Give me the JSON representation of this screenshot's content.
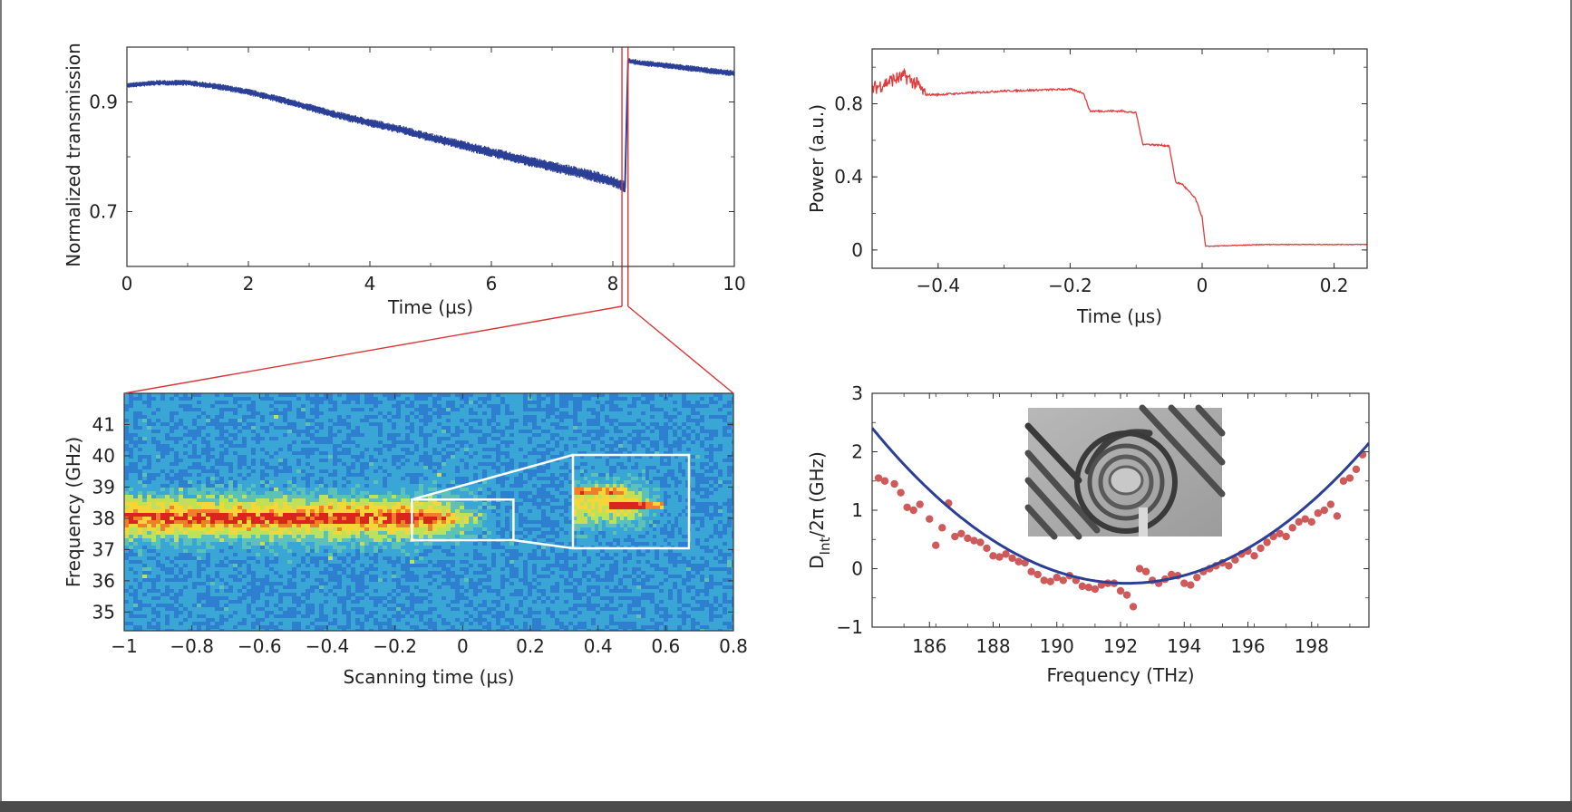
{
  "chart_data": [
    {
      "id": "transmission",
      "type": "line",
      "title": "",
      "xlabel": "Time (µs)",
      "ylabel": "Normalized transmission",
      "xlim": [
        0,
        10
      ],
      "ylim": [
        0.6,
        1.0
      ],
      "xticks": [
        "0",
        "2",
        "4",
        "6",
        "8",
        "10"
      ],
      "xtick_values": [
        0,
        2,
        4,
        6,
        8,
        10
      ],
      "yticks": [
        "0.7",
        "0.9"
      ],
      "ytick_values": [
        0.7,
        0.9
      ],
      "series": [
        {
          "name": "transmission",
          "color": "#2b3f97",
          "x": [
            0,
            0.5,
            1.0,
            1.5,
            2.0,
            2.5,
            3.0,
            3.5,
            4.0,
            4.5,
            5.0,
            5.5,
            6.0,
            6.5,
            7.0,
            7.5,
            8.0,
            8.2,
            8.25,
            8.4,
            9.0,
            9.5,
            10.0
          ],
          "y": [
            0.93,
            0.935,
            0.935,
            0.928,
            0.918,
            0.905,
            0.89,
            0.875,
            0.862,
            0.85,
            0.835,
            0.822,
            0.808,
            0.795,
            0.782,
            0.77,
            0.755,
            0.745,
            0.975,
            0.972,
            0.965,
            0.958,
            0.952
          ],
          "noise_band": 0.012
        }
      ],
      "zoom_window": [
        8.15,
        8.25
      ]
    },
    {
      "id": "power",
      "type": "line",
      "title": "",
      "xlabel": "Time (µs)",
      "ylabel": "Power (a.u.)",
      "xlim": [
        -0.5,
        0.25
      ],
      "ylim": [
        -0.1,
        1.1
      ],
      "xticks": [
        "−0.4",
        "−0.2",
        "0",
        "0.2"
      ],
      "xtick_values": [
        -0.4,
        -0.2,
        0,
        0.2
      ],
      "yticks": [
        "0",
        "0.4",
        "0.8"
      ],
      "ytick_values": [
        0,
        0.4,
        0.8
      ],
      "series": [
        {
          "name": "power",
          "color": "#e23b3b",
          "x": [
            -0.5,
            -0.47,
            -0.45,
            -0.43,
            -0.42,
            -0.4,
            -0.3,
            -0.2,
            -0.18,
            -0.17,
            -0.12,
            -0.1,
            -0.09,
            -0.05,
            -0.04,
            -0.03,
            -0.01,
            0,
            0.005,
            0.1,
            0.25
          ],
          "y": [
            0.88,
            0.93,
            0.95,
            0.9,
            0.85,
            0.85,
            0.87,
            0.88,
            0.86,
            0.76,
            0.76,
            0.75,
            0.58,
            0.57,
            0.37,
            0.36,
            0.28,
            0.18,
            0.02,
            0.03,
            0.03
          ]
        }
      ]
    },
    {
      "id": "spectrogram",
      "type": "heatmap",
      "title": "",
      "xlabel": "Scanning time (µs)",
      "ylabel": "Frequency (GHz)",
      "xlim": [
        -1,
        0.8
      ],
      "ylim": [
        34.4,
        42
      ],
      "xticks": [
        "−1",
        "−0.8",
        "−0.6",
        "−0.4",
        "−0.2",
        "0",
        "0.2",
        "0.4",
        "0.6",
        "0.8"
      ],
      "xtick_values": [
        -1,
        -0.8,
        -0.6,
        -0.4,
        -0.2,
        0,
        0.2,
        0.4,
        0.6,
        0.8
      ],
      "yticks": [
        "35",
        "36",
        "37",
        "38",
        "39",
        "40",
        "41"
      ],
      "ytick_values": [
        35,
        36,
        37,
        38,
        39,
        40,
        41
      ],
      "signal_center_ghz": 38.0,
      "signal_end_us": 0.1,
      "zoom_box": {
        "x": [
          -0.15,
          0.15
        ],
        "y": [
          37.3,
          38.6
        ]
      },
      "colors": [
        "#1c3fae",
        "#2f7fd0",
        "#3aa6d6",
        "#5cc2b8",
        "#bfe05a",
        "#f3d63a",
        "#f07f2a",
        "#d9261c"
      ]
    },
    {
      "id": "dint",
      "type": "scatter",
      "title": "",
      "xlabel": "Frequency (THz)",
      "ylabel": "D",
      "ylabel_sub": "Int",
      "ylabel_suffix": "/2π (GHz)",
      "xlim": [
        184.2,
        199.8
      ],
      "ylim": [
        -1,
        3
      ],
      "xticks": [
        "186",
        "188",
        "190",
        "192",
        "194",
        "196",
        "198"
      ],
      "xtick_values": [
        186,
        188,
        190,
        192,
        194,
        196,
        198
      ],
      "yticks": [
        "−1",
        "0",
        "1",
        "2",
        "3"
      ],
      "ytick_values": [
        -1,
        0,
        1,
        2,
        3
      ],
      "fit": {
        "name": "parabola fit",
        "color": "#2b3f97",
        "vertex_x": 192.2,
        "vertex_y": -0.25,
        "a": 0.0415
      },
      "points": {
        "name": "measured",
        "color": "#cf5a5a",
        "x": [
          184.4,
          184.6,
          184.9,
          185.1,
          185.3,
          185.5,
          185.7,
          186.0,
          186.2,
          186.4,
          186.6,
          186.8,
          187.0,
          187.2,
          187.4,
          187.6,
          187.8,
          188.0,
          188.2,
          188.4,
          188.6,
          188.8,
          189.0,
          189.2,
          189.4,
          189.6,
          189.8,
          190.0,
          190.2,
          190.4,
          190.6,
          190.8,
          191.0,
          191.2,
          191.4,
          191.6,
          191.8,
          192.0,
          192.2,
          192.4,
          192.6,
          192.8,
          193.0,
          193.2,
          193.4,
          193.6,
          193.8,
          194.0,
          194.2,
          194.4,
          194.6,
          194.8,
          195.0,
          195.2,
          195.4,
          195.6,
          195.8,
          196.0,
          196.2,
          196.4,
          196.6,
          196.8,
          197.0,
          197.2,
          197.4,
          197.6,
          197.8,
          198.0,
          198.2,
          198.4,
          198.6,
          198.8,
          199.0,
          199.2,
          199.4,
          199.6
        ],
        "y": [
          1.55,
          1.5,
          1.45,
          1.3,
          1.05,
          1.0,
          1.1,
          0.85,
          0.4,
          0.7,
          1.12,
          0.55,
          0.6,
          0.52,
          0.48,
          0.45,
          0.35,
          0.22,
          0.2,
          0.25,
          0.18,
          0.12,
          0.1,
          -0.05,
          -0.1,
          -0.2,
          -0.22,
          -0.15,
          -0.2,
          -0.12,
          -0.2,
          -0.3,
          -0.32,
          -0.35,
          -0.28,
          -0.25,
          -0.25,
          -0.38,
          -0.45,
          -0.65,
          0.0,
          -0.05,
          -0.2,
          -0.25,
          -0.18,
          -0.1,
          -0.12,
          -0.25,
          -0.28,
          -0.15,
          -0.05,
          0.0,
          0.05,
          0.1,
          0.05,
          0.15,
          0.25,
          0.3,
          0.22,
          0.35,
          0.45,
          0.55,
          0.6,
          0.55,
          0.7,
          0.8,
          0.85,
          0.8,
          0.95,
          1.0,
          1.1,
          0.9,
          1.5,
          1.55,
          1.7,
          1.95
        ]
      }
    }
  ],
  "inset_image": {
    "name": "microring resonator SEM image"
  }
}
